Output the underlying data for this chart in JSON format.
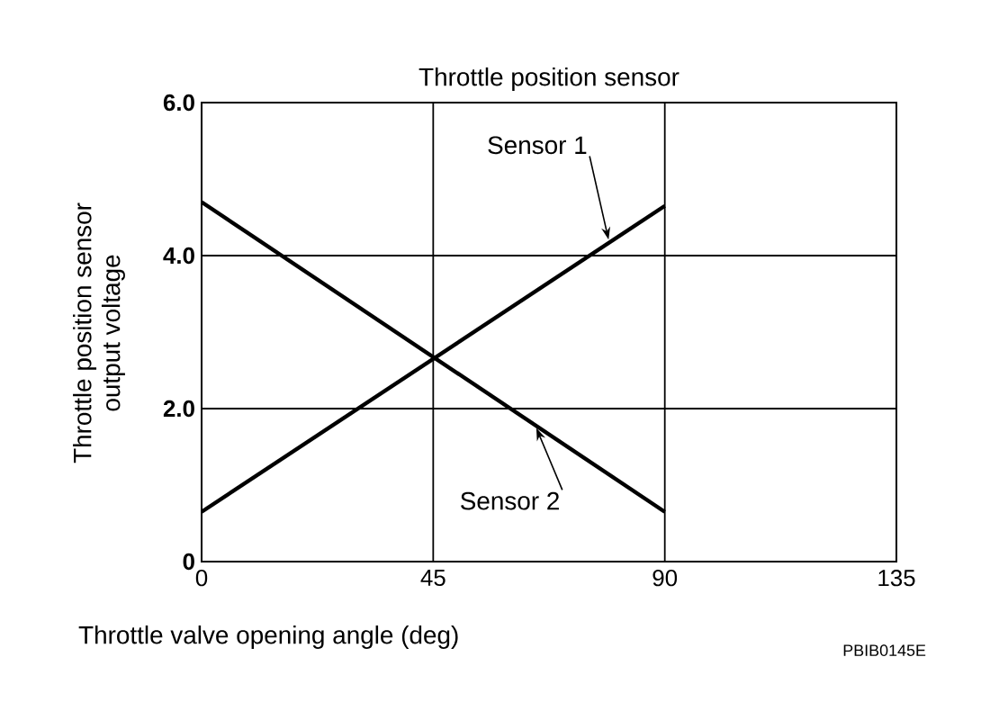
{
  "chart_data": {
    "type": "line",
    "title": "Throttle position sensor",
    "xlabel": "Throttle valve opening angle (deg)",
    "ylabel": "Throttle position sensor\noutput voltage",
    "x": [
      0,
      90
    ],
    "series": [
      {
        "name": "Sensor 1",
        "color": "#000000",
        "values": [
          0.65,
          4.65
        ]
      },
      {
        "name": "Sensor 2",
        "color": "#000000",
        "values": [
          4.7,
          0.65
        ]
      }
    ],
    "xlim": [
      0,
      135
    ],
    "xticks": [
      0,
      45,
      90,
      135
    ],
    "ylim": [
      0,
      6
    ],
    "yticks": [
      0,
      {
        "value": 2,
        "label": "2.0"
      },
      {
        "value": 4,
        "label": "4.0"
      },
      {
        "value": 6,
        "label": "6.0"
      }
    ],
    "grid": true,
    "annotations": [
      "PBIB0145E"
    ]
  }
}
